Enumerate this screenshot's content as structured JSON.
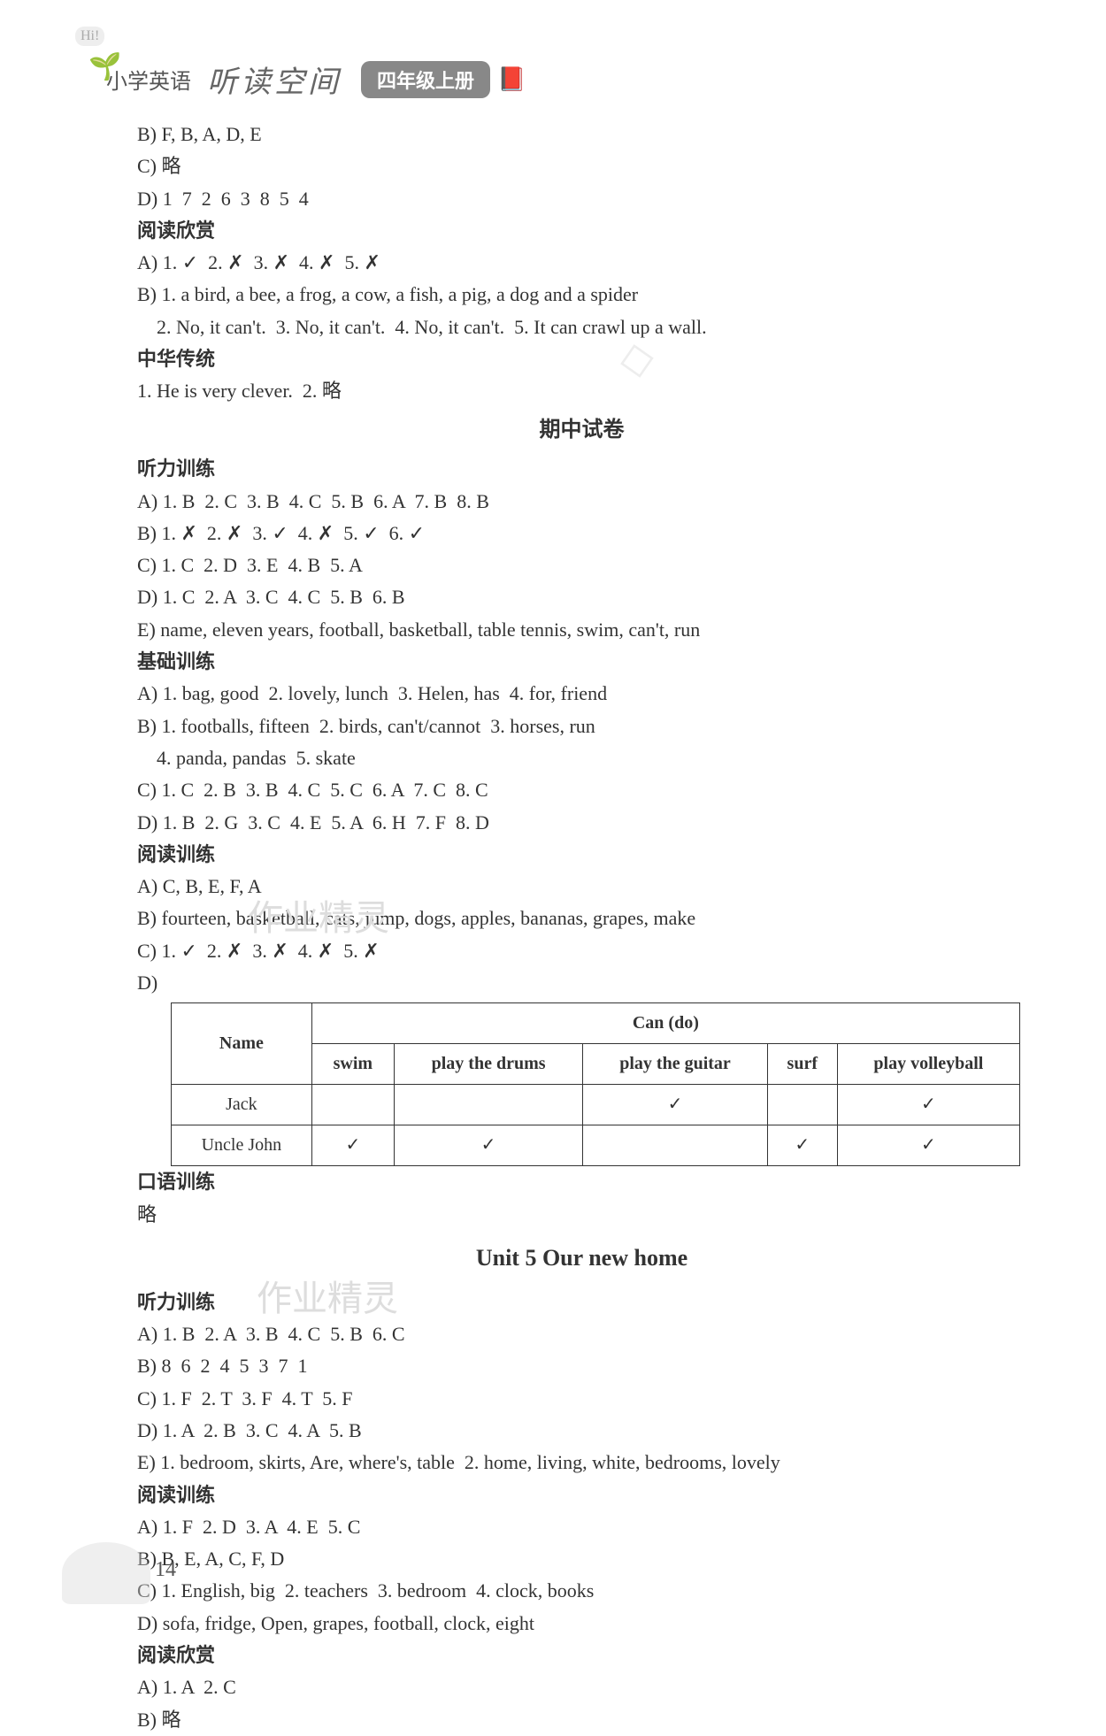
{
  "header": {
    "hi": "Hi!",
    "title_prefix": "小学英语",
    "subtitle": "听读空间",
    "grade": "四年级上册"
  },
  "content": {
    "line1": "B) F, B, A, D, E",
    "line2": "C) 略",
    "line3": "D) 1  7  2  6  3  8  5  4",
    "section1": "阅读欣赏",
    "line4": "A) 1. ✓  2. ✗  3. ✗  4. ✗  5. ✗",
    "line5": "B) 1. a bird, a bee, a frog, a cow, a fish, a pig, a dog and a spider",
    "line6": "    2. No, it can't.  3. No, it can't.  4. No, it can't.  5. It can crawl up a wall.",
    "section2": "中华传统",
    "line7": "1. He is very clever.  2. 略",
    "midterm_title": "期中试卷",
    "section3": "听力训练",
    "line8": "A) 1. B  2. C  3. B  4. C  5. B  6. A  7. B  8. B",
    "line9": "B) 1. ✗  2. ✗  3. ✓  4. ✗  5. ✓  6. ✓",
    "line10": "C) 1. C  2. D  3. E  4. B  5. A",
    "line11": "D) 1. C  2. A  3. C  4. C  5. B  6. B",
    "line12": "E) name, eleven years, football, basketball, table tennis, swim, can't, run",
    "section4": "基础训练",
    "line13": "A) 1. bag, good  2. lovely, lunch  3. Helen, has  4. for, friend",
    "line14": "B) 1. footballs, fifteen  2. birds, can't/cannot  3. horses, run",
    "line15": "    4. panda, pandas  5. skate",
    "line16": "C) 1. C  2. B  3. B  4. C  5. C  6. A  7. C  8. C",
    "line17": "D) 1. B  2. G  3. C  4. E  5. A  6. H  7. F  8. D",
    "section5": "阅读训练",
    "line18": "A) C, B, E, F, A",
    "line19": "B) fourteen, basketball, cats, jump, dogs, apples, bananas, grapes, make",
    "line20": "C) 1. ✓  2. ✗  3. ✗  4. ✗  5. ✗",
    "line21": "D)",
    "section6": "口语训练",
    "line22": "略",
    "unit_title": "Unit 5   Our new home",
    "section7": "听力训练",
    "line23": "A) 1. B  2. A  3. B  4. C  5. B  6. C",
    "line24": "B) 8  6  2  4  5  3  7  1",
    "line25": "C) 1. F  2. T  3. F  4. T  5. F",
    "line26": "D) 1. A  2. B  3. C  4. A  5. B",
    "line27": "E) 1. bedroom, skirts, Are, where's, table  2. home, living, white, bedrooms, lovely",
    "section8": "阅读训练",
    "line28": "A) 1. F  2. D  3. A  4. E  5. C",
    "line29": "B) B, E, A, C, F, D",
    "line30": "C) 1. English, big  2. teachers  3. bedroom  4. clock, books",
    "line31": "D) sofa, fridge, Open, grapes, football, clock, eight",
    "section9": "阅读欣赏",
    "line32": "A) 1. A  2. C",
    "line33": "B) 略"
  },
  "table": {
    "header_name": "Name",
    "header_can": "Can (do)",
    "cols": [
      "swim",
      "play the drums",
      "play the guitar",
      "surf",
      "play volleyball"
    ],
    "rows": [
      {
        "name": "Jack",
        "cells": [
          "",
          "",
          "✓",
          "",
          "✓"
        ]
      },
      {
        "name": "Uncle John",
        "cells": [
          "✓",
          "✓",
          "",
          "✓",
          "✓"
        ]
      }
    ]
  },
  "page_number": "14",
  "watermark": "作业精灵"
}
